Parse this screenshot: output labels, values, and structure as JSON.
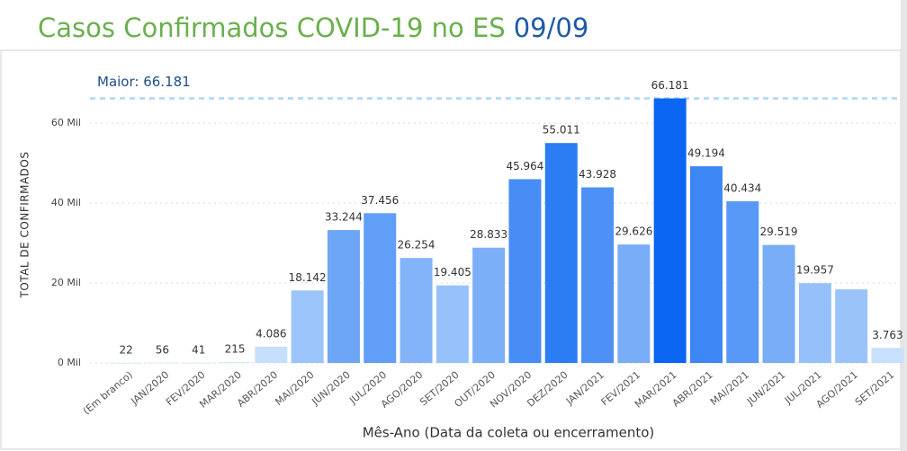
{
  "chart_data": {
    "type": "bar",
    "title": "Casos Confirmados COVID-19 no ES",
    "title_date": "09/09",
    "y_label": "TOTAL DE CONFIRMADOS",
    "x_label": "Mês-Ano (Data da coleta ou encerramento)",
    "categories": [
      "(Em branco)",
      "JAN/2020",
      "FEV/2020",
      "MAR/2020",
      "ABR/2020",
      "MAI/2020",
      "JUN/2020",
      "JUL/2020",
      "AGO/2020",
      "SET/2020",
      "OUT/2020",
      "NOV/2020",
      "DEZ/2020",
      "JAN/2021",
      "FEV/2021",
      "MAR/2021",
      "ABR/2021",
      "MAI/2021",
      "JUN/2021",
      "JUL/2021",
      "AGO/2021",
      "SET/2021"
    ],
    "values": [
      22,
      56,
      41,
      215,
      4086,
      18142,
      33244,
      37456,
      26254,
      19405,
      28833,
      45964,
      55011,
      43928,
      29626,
      66181,
      49194,
      40434,
      29519,
      19957,
      18400,
      3763
    ],
    "value_labels": [
      "22",
      "56",
      "41",
      "215",
      "4.086",
      "18.142",
      "33.244",
      "37.456",
      "26.254",
      "19.405",
      "28.833",
      "45.964",
      "55.011",
      "43.928",
      "29.626",
      "66.181",
      "49.194",
      "40.434",
      "29.519",
      "19.957",
      null,
      "3.763"
    ],
    "color_scale": [
      "#d2e7fd",
      "#0a66f2"
    ],
    "ylim": [
      0,
      70000
    ],
    "yticks": [
      {
        "value": 0,
        "label": "0 Mil"
      },
      {
        "value": 20000,
        "label": "20 Mil"
      },
      {
        "value": 40000,
        "label": "40 Mil"
      },
      {
        "value": 60000,
        "label": "60 Mil"
      }
    ],
    "grid": true,
    "reference_line": {
      "label": "Maior: 66.181",
      "value": 66181,
      "color": "#b9dcf7"
    }
  }
}
